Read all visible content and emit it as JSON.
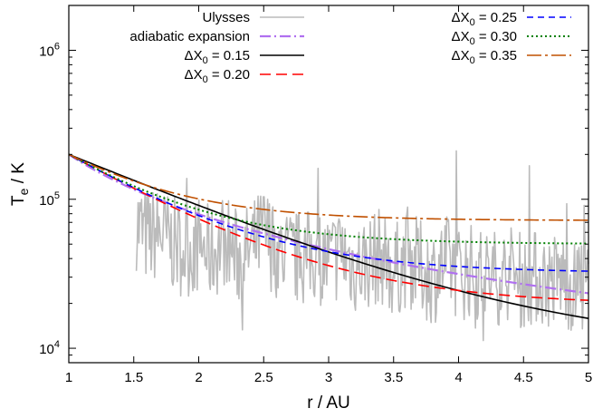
{
  "chart_data": {
    "type": "line",
    "xlabel": "r / AU",
    "ylabel_main": "T",
    "ylabel_sub": "e",
    "ylabel_unit": " / K",
    "xlim": [
      1,
      5
    ],
    "ylim": [
      8000,
      2000000
    ],
    "yscale": "log",
    "grid": false,
    "legend_position": "top",
    "x_ticks": [
      1,
      1.5,
      2,
      2.5,
      3,
      3.5,
      4,
      4.5,
      5
    ],
    "x_tick_labels": [
      "1",
      "1.5",
      "2",
      "2.5",
      "3",
      "3.5",
      "4",
      "4.5",
      "5"
    ],
    "y_major_ticks": [
      {
        "value": 10000,
        "base": "10",
        "exp": "4"
      },
      {
        "value": 100000,
        "base": "10",
        "exp": "5"
      },
      {
        "value": 1000000,
        "base": "10",
        "exp": "6"
      }
    ],
    "series": [
      {
        "name": "Ulysses",
        "color": "#bbbbbb",
        "style": "solid",
        "width": 1.6,
        "kind": "noisy",
        "x": [
          1.52,
          1.6,
          1.7,
          1.8,
          1.9,
          2.0,
          2.1,
          2.2,
          2.3,
          2.4,
          2.5,
          2.6,
          2.7,
          2.8,
          2.9,
          3.0,
          3.1,
          3.2,
          3.3,
          3.4,
          3.5,
          3.6,
          3.7,
          3.8,
          3.9,
          4.0,
          4.1,
          4.2,
          4.3,
          4.4,
          4.5,
          4.6,
          4.7,
          4.8,
          4.9,
          5.0
        ],
        "y": [
          70000,
          55000,
          60000,
          50000,
          45000,
          50000,
          42000,
          55000,
          40000,
          45000,
          60000,
          45000,
          40000,
          40000,
          42000,
          38000,
          45000,
          35000,
          38000,
          42000,
          32000,
          40000,
          35000,
          30000,
          38000,
          32000,
          33000,
          30000,
          30000,
          32000,
          28000,
          30000,
          28000,
          30000,
          25000,
          28000
        ]
      },
      {
        "name": "adiabatic expansion",
        "color": "#b070f0",
        "style": "dashdot",
        "width": 2.2,
        "kind": "power",
        "T0": 200000,
        "alpha": 1.3333
      },
      {
        "name": "ΔX₀ = 0.15",
        "label_prefix": "ΔX",
        "label_sub": "0",
        "label_suffix": " = 0.15",
        "color": "#000000",
        "style": "solid",
        "width": 1.6,
        "kind": "decay",
        "T0": 200000,
        "Tinf": 9500,
        "b": 0.85
      },
      {
        "name": "ΔX₀ = 0.20",
        "label_prefix": "ΔX",
        "label_sub": "0",
        "label_suffix": " = 0.20",
        "color": "#ff0000",
        "style": "dashed",
        "width": 1.6,
        "kind": "decay",
        "T0": 200000,
        "Tinf": 19500,
        "b": 1.2
      },
      {
        "name": "ΔX₀ = 0.25",
        "label_prefix": "ΔX",
        "label_sub": "0",
        "label_suffix": " = 0.25",
        "color": "#0000ff",
        "style": "shortdash",
        "width": 1.6,
        "kind": "decay",
        "T0": 200000,
        "Tinf": 32000,
        "b": 1.3
      },
      {
        "name": "ΔX₀ = 0.30",
        "label_prefix": "ΔX",
        "label_sub": "0",
        "label_suffix": " = 0.30",
        "color": "#008000",
        "style": "dotted",
        "width": 2,
        "kind": "decay",
        "T0": 200000,
        "Tinf": 50000,
        "b": 1.45
      },
      {
        "name": "ΔX₀ = 0.35",
        "label_prefix": "ΔX",
        "label_sub": "0",
        "label_suffix": " = 0.35",
        "color": "#c05000",
        "style": "dashdot2",
        "width": 1.6,
        "kind": "decay",
        "T0": 200000,
        "Tinf": 72000,
        "b": 1.5
      }
    ]
  }
}
